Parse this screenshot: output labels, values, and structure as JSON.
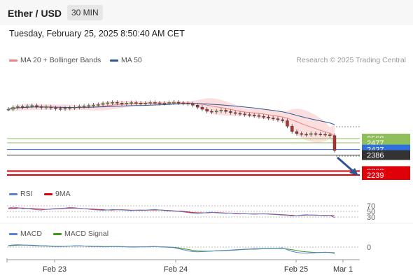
{
  "header": {
    "title": "Ether / USD",
    "timeframe": "30 MIN"
  },
  "datetime": "Tuesday, February 25, 2025 8:50:40 AM CET",
  "legend_main": [
    {
      "label": "MA 20 + Bollinger Bands",
      "color": "#f08080"
    },
    {
      "label": "MA 50",
      "color": "#2f5597"
    }
  ],
  "credit": "Research © 2025 Trading Central",
  "legend_rsi": [
    {
      "label": "RSI",
      "color": "#5a7fd6"
    },
    {
      "label": "9MA",
      "color": "#e0000a"
    }
  ],
  "legend_macd": [
    {
      "label": "MACD",
      "color": "#5a7fd6"
    },
    {
      "label": "MACD Signal",
      "color": "#3a9a1a"
    }
  ],
  "chart_data": {
    "type": "line",
    "x_labels": [
      "Feb 23",
      "Feb 24",
      "Feb 25",
      "Mar 1"
    ],
    "price_levels": [
      {
        "value": 2508,
        "label": "2508",
        "color": "#8fbf5a"
      },
      {
        "value": 2477,
        "label": "2477",
        "color": "#8fbf5a"
      },
      {
        "value": 2427,
        "label": "2427",
        "color": "#2f6fe0"
      },
      {
        "value": 2386,
        "label": "2386",
        "color": "#333333"
      },
      {
        "value": 2268,
        "label": "2268",
        "color": "#e0000a"
      },
      {
        "value": 2239,
        "label": "2239",
        "color": "#e0000a"
      }
    ],
    "price_series": [
      2725,
      2738,
      2745,
      2740,
      2748,
      2752,
      2744,
      2738,
      2742,
      2735,
      2730,
      2728,
      2732,
      2736,
      2740,
      2745,
      2748,
      2752,
      2756,
      2760,
      2768,
      2772,
      2776,
      2770,
      2766,
      2770,
      2774,
      2770,
      2766,
      2770,
      2775,
      2772,
      2768,
      2770,
      2774,
      2777,
      2772,
      2770,
      2765,
      2755,
      2740,
      2725,
      2710,
      2705,
      2712,
      2718,
      2708,
      2700,
      2695,
      2690,
      2685,
      2682,
      2678,
      2672,
      2668,
      2660,
      2655,
      2648,
      2640,
      2600,
      2560,
      2545,
      2540,
      2538,
      2545,
      2542,
      2540,
      2536,
      2530,
      2420
    ],
    "rsi_levels": [
      70,
      50,
      30
    ],
    "rsi_series": [
      62,
      65,
      63,
      60,
      61,
      58,
      56,
      55,
      57,
      59,
      60,
      61,
      62,
      64,
      63,
      61,
      60,
      58,
      56,
      55,
      54,
      55,
      57,
      56,
      55,
      54,
      53,
      54,
      55,
      54,
      56,
      57,
      55,
      53,
      52,
      51,
      50,
      48,
      46,
      44,
      43,
      44,
      46,
      47,
      45,
      44,
      43,
      44,
      42,
      41,
      42,
      41,
      40,
      41,
      42,
      40,
      39,
      38,
      37,
      36,
      34,
      35,
      37,
      38,
      37,
      36,
      36,
      35,
      36,
      28
    ],
    "rsi_ma_series": [
      60,
      61,
      62,
      62,
      61,
      60,
      59,
      58,
      57,
      58,
      59,
      60,
      61,
      62,
      62,
      61,
      60,
      59,
      58,
      57,
      56,
      55,
      55,
      56,
      56,
      55,
      54,
      54,
      54,
      54,
      55,
      55,
      55,
      54,
      53,
      52,
      51,
      50,
      48,
      46,
      45,
      45,
      45,
      46,
      46,
      45,
      44,
      44,
      43,
      42,
      42,
      41,
      41,
      41,
      41,
      41,
      40,
      39,
      38,
      37,
      36,
      35,
      36,
      37,
      37,
      37,
      36,
      36,
      36,
      34
    ],
    "macd_zero_label": "0",
    "macd_series": [
      6,
      8,
      9,
      8,
      7,
      6,
      5,
      4,
      4,
      3,
      2,
      2,
      3,
      4,
      5,
      5,
      4,
      3,
      2,
      2,
      1,
      1,
      2,
      2,
      1,
      1,
      0,
      0,
      1,
      1,
      2,
      2,
      1,
      0,
      -1,
      -2,
      -6,
      -10,
      -14,
      -17,
      -18,
      -17,
      -16,
      -15,
      -14,
      -13,
      -12,
      -11,
      -10,
      -9,
      -8,
      -7,
      -6,
      -6,
      -5,
      -5,
      -4,
      -4,
      -3,
      -10,
      -16,
      -20,
      -22,
      -23,
      -22,
      -21,
      -20,
      -19,
      -20,
      -24
    ],
    "macd_signal_series": [
      5,
      6,
      7,
      7,
      7,
      7,
      6,
      5,
      5,
      4,
      3,
      3,
      3,
      4,
      4,
      5,
      4,
      4,
      3,
      3,
      2,
      2,
      2,
      2,
      2,
      1,
      1,
      1,
      1,
      1,
      1,
      2,
      1,
      1,
      0,
      -1,
      -3,
      -6,
      -9,
      -12,
      -14,
      -15,
      -15,
      -15,
      -14,
      -14,
      -13,
      -12,
      -11,
      -10,
      -9,
      -8,
      -8,
      -7,
      -6,
      -6,
      -5,
      -5,
      -5,
      -7,
      -10,
      -13,
      -16,
      -18,
      -19,
      -20,
      -20,
      -20,
      -20,
      -21
    ]
  }
}
